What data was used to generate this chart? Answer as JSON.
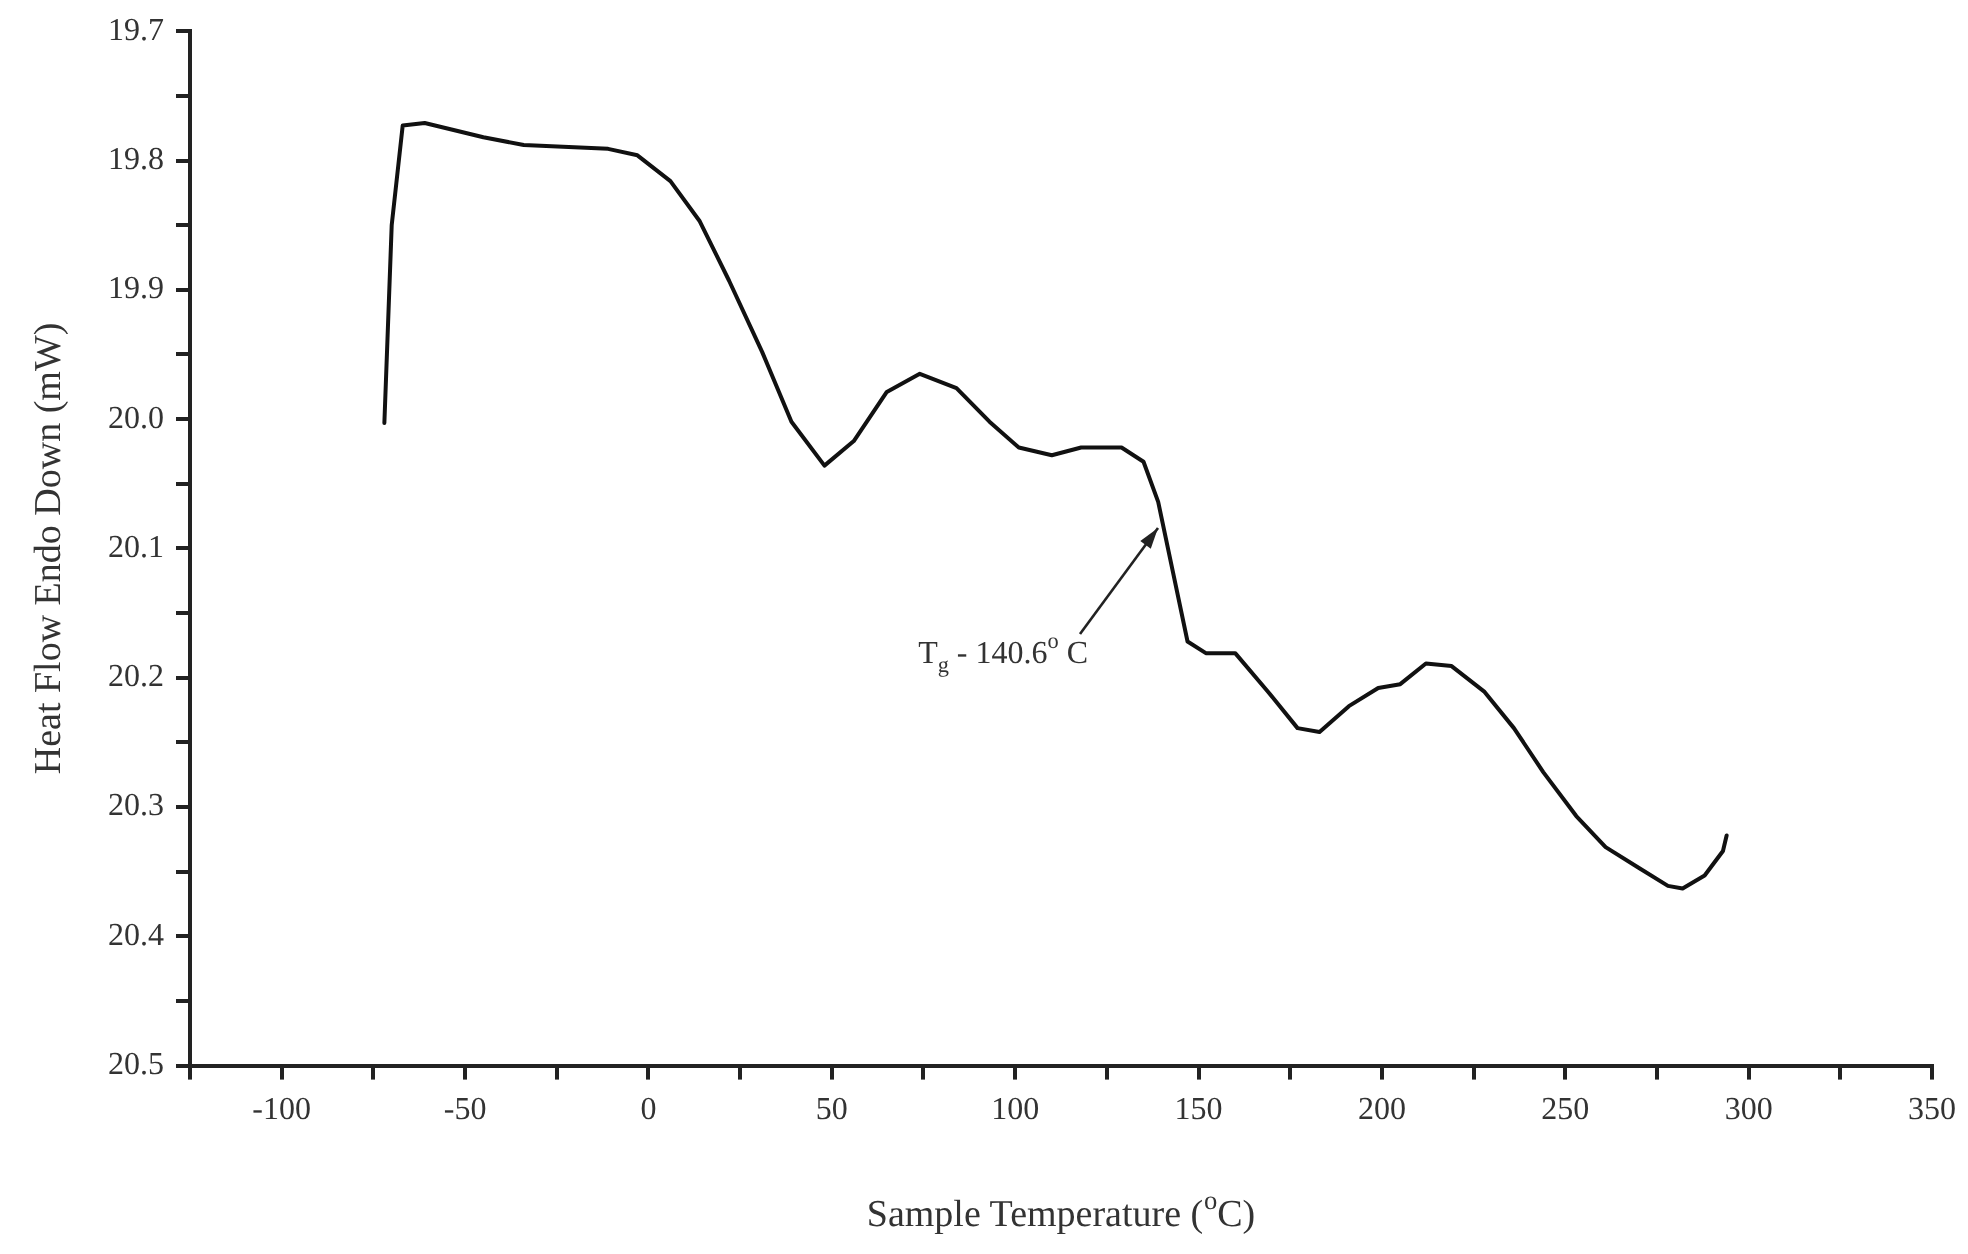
{
  "chart_data": {
    "type": "line",
    "xlabel": "Sample Temperature ($^{o}$C)",
    "ylabel": "Heat Flow Endo Down (mW)",
    "xlim": [
      -125,
      350
    ],
    "ylim": [
      20.5,
      19.7
    ],
    "xticks": [
      {
        "value": -125,
        "label": null
      },
      -100,
      {
        "value": -75,
        "label": null
      },
      -50,
      {
        "value": -25,
        "label": null
      },
      0,
      {
        "value": 25,
        "label": null
      },
      50,
      {
        "value": 75,
        "label": null
      },
      100,
      {
        "value": 125,
        "label": null
      },
      150,
      {
        "value": 175,
        "label": null
      },
      200,
      {
        "value": 225,
        "label": null
      },
      250,
      {
        "value": 275,
        "label": null
      },
      300,
      {
        "value": 325,
        "label": null
      },
      350
    ],
    "yticks": [
      19.7,
      {
        "value": 19.75,
        "label": null
      },
      19.8,
      {
        "value": 19.85,
        "label": null
      },
      19.9,
      {
        "value": 19.95,
        "label": null
      },
      {
        "value": 20.0,
        "label": "20.0"
      },
      {
        "value": 20.05,
        "label": null
      },
      20.1,
      {
        "value": 20.15,
        "label": null
      },
      20.2,
      {
        "value": 20.25,
        "label": null
      },
      20.3,
      {
        "value": 20.35,
        "label": null
      },
      20.4,
      {
        "value": 20.45,
        "label": null
      },
      20.5
    ],
    "grid": false,
    "legend": false,
    "marker": "none",
    "line_style": "solid",
    "annotations": [
      {
        "text": "T$_{g}$ - 140.6$^{o}$ C",
        "x": 140.6,
        "y": 20.08
      }
    ],
    "series": [
      {
        "color": "#111111",
        "x": [
          -72,
          -70,
          -67,
          -61,
          -45,
          -34,
          -11,
          -3,
          6,
          14,
          22,
          31,
          39,
          48,
          56,
          65,
          74,
          84,
          93,
          101,
          110,
          118,
          129,
          135,
          139,
          143,
          147,
          152,
          160,
          169,
          177,
          183,
          191,
          199,
          205,
          212,
          219,
          228,
          236,
          244,
          253,
          261,
          270,
          278,
          282,
          288,
          293,
          294
        ],
        "values": [
          20.003,
          19.85,
          19.773,
          19.771,
          19.782,
          19.788,
          19.791,
          19.796,
          19.816,
          19.847,
          19.893,
          19.948,
          20.002,
          20.036,
          20.017,
          19.979,
          19.965,
          19.976,
          20.002,
          20.022,
          20.028,
          20.022,
          20.022,
          20.033,
          20.064,
          20.118,
          20.172,
          20.181,
          20.181,
          20.211,
          20.239,
          20.242,
          20.222,
          20.208,
          20.205,
          20.189,
          20.191,
          20.211,
          20.239,
          20.273,
          20.307,
          20.331,
          20.347,
          20.361,
          20.363,
          20.353,
          20.334,
          20.322
        ]
      }
    ]
  }
}
